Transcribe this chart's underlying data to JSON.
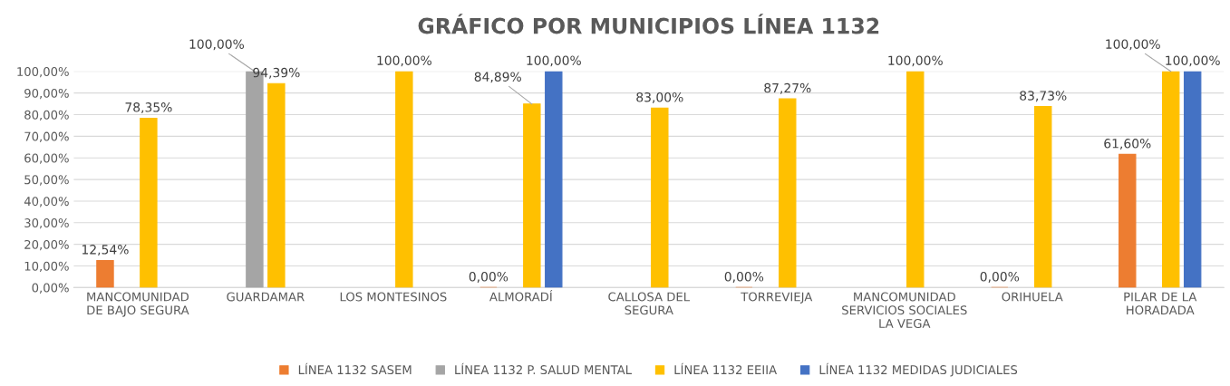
{
  "chart_data": {
    "type": "bar",
    "title": "GRÁFICO POR MUNICIPIOS LÍNEA 1132",
    "categories": [
      "MANCOMUNIDAD\nDE BAJO SEGURA",
      "GUARDAMAR",
      "LOS MONTESINOS",
      "ALMORADÍ",
      "CALLOSA DEL\nSEGURA",
      "TORREVIEJA",
      "MANCOMUNIDAD\nSERVICIOS SOCIALES\nLA VEGA",
      "ORIHUELA",
      "PILAR DE LA\nHORADADA"
    ],
    "series": [
      {
        "name": "LÍNEA 1132 SASEM",
        "color": "#ed7d31",
        "values": [
          12.54,
          null,
          null,
          0,
          null,
          0,
          null,
          0,
          61.6
        ],
        "value_labels": [
          "12,54%",
          null,
          null,
          "0,00%",
          null,
          "0,00%",
          null,
          "0,00%",
          "61,60%"
        ]
      },
      {
        "name": "LÍNEA 1132 P. SALUD MENTAL",
        "color": "#a5a5a5",
        "values": [
          null,
          100,
          null,
          null,
          null,
          null,
          null,
          null,
          null
        ],
        "value_labels": [
          null,
          "100,00%",
          null,
          null,
          null,
          null,
          null,
          null,
          null
        ]
      },
      {
        "name": "LÍNEA 1132 EEIIA",
        "color": "#ffc000",
        "values": [
          78.35,
          94.39,
          100,
          84.89,
          83.0,
          87.27,
          100,
          83.73,
          100
        ],
        "value_labels": [
          "78,35%",
          "94,39%",
          "100,00%",
          "84,89%",
          "83,00%",
          "87,27%",
          "100,00%",
          "83,73%",
          "100,00%"
        ]
      },
      {
        "name": "LÍNEA 1132 MEDIDAS JUDICIALES",
        "color": "#4472c4",
        "values": [
          null,
          null,
          null,
          100,
          null,
          null,
          null,
          null,
          100
        ],
        "value_labels": [
          null,
          null,
          null,
          "100,00%",
          null,
          null,
          null,
          null,
          "100,00%"
        ]
      }
    ],
    "ylim": [
      0,
      100
    ],
    "yticks": [
      {
        "value": 0,
        "label": "0,00%"
      },
      {
        "value": 10,
        "label": "10,00%"
      },
      {
        "value": 20,
        "label": "20,00%"
      },
      {
        "value": 30,
        "label": "30,00%"
      },
      {
        "value": 40,
        "label": "40,00%"
      },
      {
        "value": 50,
        "label": "50,00%"
      },
      {
        "value": 60,
        "label": "60,00%"
      },
      {
        "value": 70,
        "label": "70,00%"
      },
      {
        "value": 80,
        "label": "80,00%"
      },
      {
        "value": 90,
        "label": "90,00%"
      },
      {
        "value": 100,
        "label": "100,00%"
      }
    ],
    "grid": "y",
    "legend": "bottom"
  }
}
